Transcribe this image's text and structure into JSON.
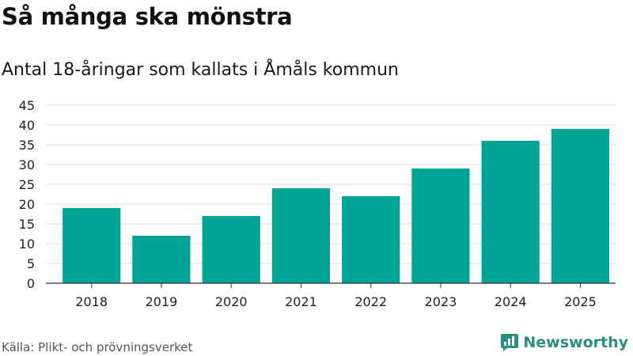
{
  "title": "Så många ska mönstra",
  "subtitle": "Antal 18-åringar som kallats i Åmåls kommun",
  "source": "Källa: Plikt- och prövningsverket",
  "brand": {
    "name": "Newsworthy",
    "icon": "newsworthy-logo-icon",
    "color": "#2a8f83"
  },
  "colors": {
    "bar": "#00a398",
    "grid": "#dddddd",
    "axis": "#333333"
  },
  "chart_data": {
    "type": "bar",
    "title": "Så många ska mönstra",
    "subtitle": "Antal 18-åringar som kallats i Åmåls kommun",
    "categories": [
      "2018",
      "2019",
      "2020",
      "2021",
      "2022",
      "2023",
      "2024",
      "2025"
    ],
    "values": [
      19,
      12,
      17,
      24,
      22,
      29,
      36,
      39
    ],
    "ylim": [
      0,
      45
    ],
    "yticks": [
      0,
      5,
      10,
      15,
      20,
      25,
      30,
      35,
      40,
      45
    ],
    "grid": true,
    "legend": "none"
  }
}
